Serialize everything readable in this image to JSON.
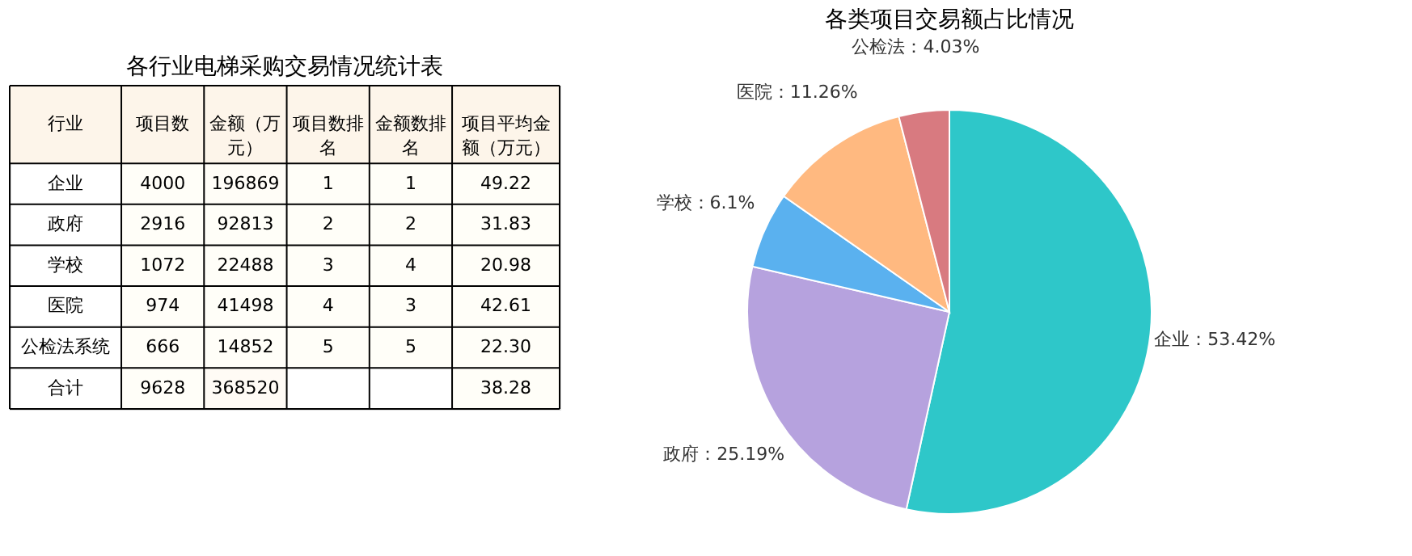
{
  "chart_data": [
    {
      "type": "heatmap",
      "title": "各行业电梯采购交易情况统计表",
      "ylabel": "行业",
      "categories": [
        "项目数",
        "金额（万元）",
        "项目数排名",
        "金额数排名",
        "项目平均金额（万元）"
      ],
      "y_categories": [
        "企业",
        "政府",
        "学校",
        "医院",
        "公检法系统",
        "合计"
      ],
      "cells": [
        [
          4000,
          196869,
          1,
          1,
          49.22
        ],
        [
          2916,
          92813,
          2,
          2,
          31.83
        ],
        [
          1072,
          22488,
          3,
          4,
          20.98
        ],
        [
          974,
          41498,
          4,
          3,
          42.61
        ],
        [
          666,
          14852,
          5,
          5,
          22.3
        ],
        [
          9628,
          368520,
          null,
          null,
          38.28
        ]
      ],
      "cell_labels": [
        [
          "4000",
          "196869",
          "1",
          "1",
          "49.22"
        ],
        [
          "2916",
          "92813",
          "2",
          "2",
          "31.83"
        ],
        [
          "1072",
          "22488",
          "3",
          "4",
          "20.98"
        ],
        [
          "974",
          "41498",
          "4",
          "3",
          "42.61"
        ],
        [
          "666",
          "14852",
          "5",
          "5",
          "22.30"
        ],
        [
          "9628",
          "368520",
          null,
          null,
          "38.28"
        ]
      ],
      "data_labels": true
    },
    {
      "type": "pie",
      "title": "各类项目交易额占比情况",
      "categories": [
        "企业",
        "政府",
        "学校",
        "医院",
        "公检法"
      ],
      "values": [
        53.42,
        25.19,
        6.1,
        11.26,
        4.03
      ],
      "value_labels": [
        "53.42%",
        "25.19%",
        "6.1%",
        "11.26%",
        "4.03%"
      ],
      "colors": [
        "#2ec7c9",
        "#b6a2de",
        "#5ab1ef",
        "#ffb980",
        "#d87a80"
      ],
      "legend": false
    }
  ]
}
